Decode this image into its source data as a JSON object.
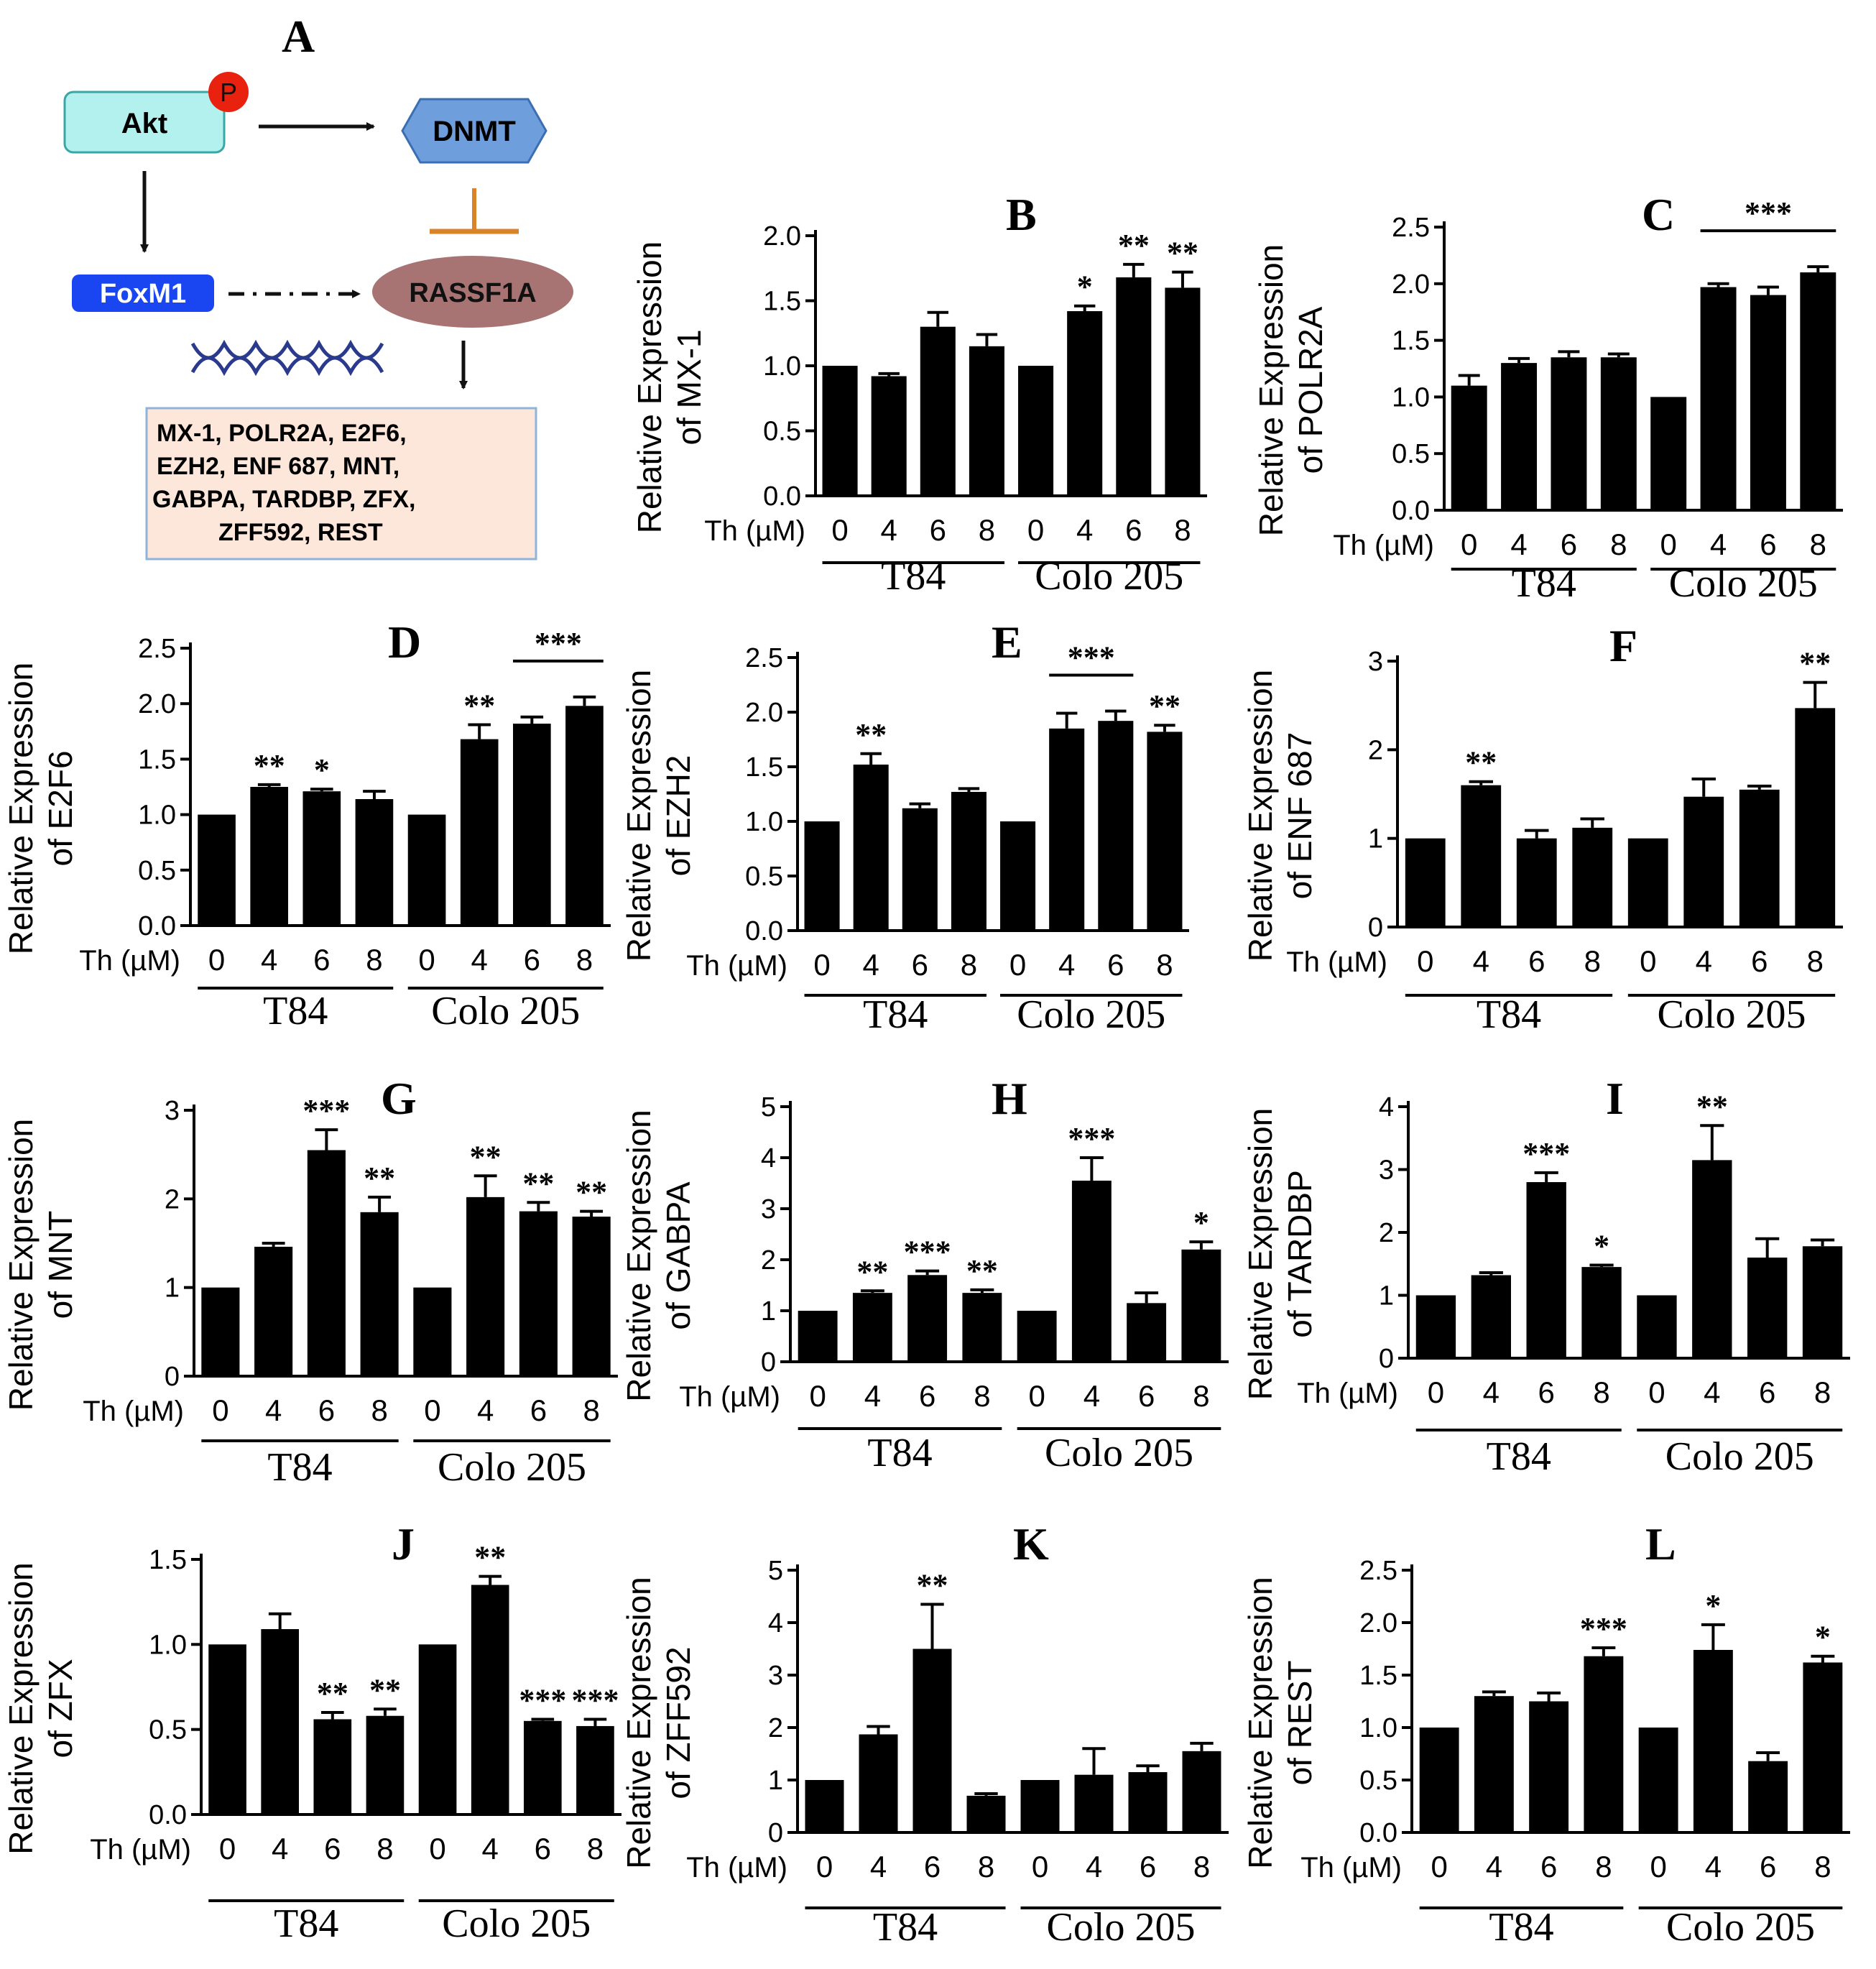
{
  "panel_a": {
    "letter": "A",
    "akt": "Akt",
    "phospho": "P",
    "dnmt": "DNMT",
    "foxm1": "FoxM1",
    "rassf1a": "RASSF1A",
    "gene_lines": [
      "MX-1, POLR2A, E2F6,",
      "EZH2, ENF 687, MNT,",
      "GABPA, TARDBP, ZFX,",
      "ZFF592, REST"
    ],
    "colors": {
      "akt_fill": "#b3f1ef",
      "dnmt_fill": "#6e9edc",
      "foxm1_fill": "#1946f0",
      "rassf1a_fill": "#a87473",
      "phospho_fill": "#e8220f",
      "inhibit": "#d9832a",
      "gene_box_fill": "#fde7da",
      "gene_box_border": "#8fb3d9",
      "dna": "#2a3a8c"
    }
  },
  "chart_data": [
    {
      "type": "bar",
      "panel": "B",
      "ylabel_line1": "Relative Expression",
      "ylabel_line2": "of MX-1",
      "xprefix": "Th (µM)",
      "categories": [
        "0",
        "4",
        "6",
        "8",
        "0",
        "4",
        "6",
        "8"
      ],
      "groups": [
        "T84",
        "Colo 205"
      ],
      "yticks": [
        "0.0",
        "0.5",
        "1.0",
        "1.5",
        "2.0"
      ],
      "ylim": [
        0,
        2.0
      ],
      "values": [
        1.0,
        0.92,
        1.3,
        1.15,
        1.0,
        1.42,
        1.68,
        1.6
      ],
      "errors": [
        0,
        0.02,
        0.11,
        0.09,
        0,
        0.04,
        0.1,
        0.12
      ],
      "stars": [
        "",
        "",
        "",
        "",
        "",
        "*",
        "**",
        "**"
      ],
      "bracket": null
    },
    {
      "type": "bar",
      "panel": "C",
      "ylabel_line1": "Relative Expression",
      "ylabel_line2": "of POLR2A",
      "xprefix": "Th (µM)",
      "categories": [
        "0",
        "4",
        "6",
        "8",
        "0",
        "4",
        "6",
        "8"
      ],
      "groups": [
        "T84",
        "Colo 205"
      ],
      "yticks": [
        "0.0",
        "0.5",
        "1.0",
        "1.5",
        "2.0",
        "2.5"
      ],
      "ylim": [
        0,
        2.5
      ],
      "values": [
        1.1,
        1.3,
        1.35,
        1.35,
        1.0,
        1.97,
        1.9,
        2.1
      ],
      "errors": [
        0.09,
        0.04,
        0.05,
        0.03,
        0,
        0.03,
        0.07,
        0.05
      ],
      "stars": [
        "",
        "",
        "",
        "",
        "",
        "",
        "",
        ""
      ],
      "bracket": {
        "from": 5,
        "to": 7,
        "label": "***"
      }
    },
    {
      "type": "bar",
      "panel": "D",
      "ylabel_line1": "Relative Expression",
      "ylabel_line2": "of E2F6",
      "xprefix": "Th (µM)",
      "categories": [
        "0",
        "4",
        "6",
        "8",
        "0",
        "4",
        "6",
        "8"
      ],
      "groups": [
        "T84",
        "Colo 205"
      ],
      "yticks": [
        "0.0",
        "0.5",
        "1.0",
        "1.5",
        "2.0",
        "2.5"
      ],
      "ylim": [
        0,
        2.5
      ],
      "values": [
        1.0,
        1.25,
        1.21,
        1.14,
        1.0,
        1.68,
        1.82,
        1.98
      ],
      "errors": [
        0,
        0.02,
        0.02,
        0.07,
        0,
        0.13,
        0.06,
        0.08
      ],
      "stars": [
        "",
        "**",
        "*",
        "",
        "",
        "**",
        "",
        ""
      ],
      "bracket": {
        "from": 6,
        "to": 7,
        "label": "***"
      }
    },
    {
      "type": "bar",
      "panel": "E",
      "ylabel_line1": "Relative Expression",
      "ylabel_line2": "of EZH2",
      "xprefix": "Th (µM)",
      "categories": [
        "0",
        "4",
        "6",
        "8",
        "0",
        "4",
        "6",
        "8"
      ],
      "groups": [
        "T84",
        "Colo 205"
      ],
      "yticks": [
        "0.0",
        "0.5",
        "1.0",
        "1.5",
        "2.0",
        "2.5"
      ],
      "ylim": [
        0,
        2.5
      ],
      "values": [
        1.0,
        1.52,
        1.12,
        1.27,
        1.0,
        1.85,
        1.92,
        1.82
      ],
      "errors": [
        0,
        0.1,
        0.04,
        0.03,
        0,
        0.14,
        0.09,
        0.06
      ],
      "stars": [
        "",
        "**",
        "",
        "",
        "",
        "",
        "",
        "**"
      ],
      "bracket": {
        "from": 5,
        "to": 6,
        "label": "***"
      }
    },
    {
      "type": "bar",
      "panel": "F",
      "ylabel_line1": "Relative Expression",
      "ylabel_line2": "of ENF 687",
      "xprefix": "Th (µM)",
      "categories": [
        "0",
        "4",
        "6",
        "8",
        "0",
        "4",
        "6",
        "8"
      ],
      "groups": [
        "T84",
        "Colo 205"
      ],
      "yticks": [
        "0",
        "1",
        "2",
        "3"
      ],
      "ylim": [
        0,
        3
      ],
      "values": [
        1.0,
        1.6,
        1.0,
        1.12,
        1.0,
        1.47,
        1.55,
        2.47
      ],
      "errors": [
        0,
        0.04,
        0.09,
        0.1,
        0,
        0.2,
        0.04,
        0.29
      ],
      "stars": [
        "",
        "**",
        "",
        "",
        "",
        "",
        "",
        "**"
      ],
      "bracket": null
    },
    {
      "type": "bar",
      "panel": "G",
      "ylabel_line1": "Relative Expression",
      "ylabel_line2": "of  MNT",
      "xprefix": "Th (µM)",
      "categories": [
        "0",
        "4",
        "6",
        "8",
        "0",
        "4",
        "6",
        "8"
      ],
      "groups": [
        "T84",
        "Colo 205"
      ],
      "yticks": [
        "0",
        "1",
        "2",
        "3"
      ],
      "ylim": [
        0,
        3
      ],
      "values": [
        1.0,
        1.46,
        2.55,
        1.85,
        1.0,
        2.02,
        1.86,
        1.8
      ],
      "errors": [
        0,
        0.04,
        0.23,
        0.17,
        0,
        0.24,
        0.1,
        0.06
      ],
      "stars": [
        "",
        "",
        "***",
        "**",
        "",
        "**",
        "**",
        "**"
      ],
      "bracket": null
    },
    {
      "type": "bar",
      "panel": "H",
      "ylabel_line1": "Relative Expression",
      "ylabel_line2": "of  GABPA",
      "xprefix": "Th (µM)",
      "categories": [
        "0",
        "4",
        "6",
        "8",
        "0",
        "4",
        "6",
        "8"
      ],
      "groups": [
        "T84",
        "Colo 205"
      ],
      "yticks": [
        "0",
        "1",
        "2",
        "3",
        "4",
        "5"
      ],
      "ylim": [
        0,
        5
      ],
      "values": [
        1.0,
        1.35,
        1.7,
        1.35,
        1.0,
        3.55,
        1.15,
        2.2
      ],
      "errors": [
        0,
        0.04,
        0.08,
        0.06,
        0,
        0.45,
        0.2,
        0.15
      ],
      "stars": [
        "",
        "**",
        "***",
        "**",
        "",
        "***",
        "",
        "*"
      ],
      "bracket": null
    },
    {
      "type": "bar",
      "panel": "I",
      "ylabel_line1": "Relative Expression",
      "ylabel_line2": "of  TARDBP",
      "xprefix": "Th (µM)",
      "categories": [
        "0",
        "4",
        "6",
        "8",
        "0",
        "4",
        "6",
        "8"
      ],
      "groups": [
        "T84",
        "Colo 205"
      ],
      "yticks": [
        "0",
        "1",
        "2",
        "3",
        "4"
      ],
      "ylim": [
        0,
        4
      ],
      "values": [
        1.0,
        1.32,
        2.8,
        1.45,
        1.0,
        3.15,
        1.6,
        1.78
      ],
      "errors": [
        0,
        0.04,
        0.15,
        0.03,
        0,
        0.55,
        0.3,
        0.1
      ],
      "stars": [
        "",
        "",
        "***",
        "*",
        "",
        "**",
        "",
        ""
      ],
      "bracket": null
    },
    {
      "type": "bar",
      "panel": "J",
      "ylabel_line1": "Relative Expression",
      "ylabel_line2": "of  ZFX",
      "xprefix": "Th (µM)",
      "categories": [
        "0",
        "4",
        "6",
        "8",
        "0",
        "4",
        "6",
        "8"
      ],
      "groups": [
        "T84",
        "Colo 205"
      ],
      "yticks": [
        "0.0",
        "0.5",
        "1.0",
        "1.5"
      ],
      "ylim": [
        0,
        1.5
      ],
      "values": [
        1.0,
        1.09,
        0.56,
        0.58,
        1.0,
        1.35,
        0.55,
        0.52
      ],
      "errors": [
        0,
        0.09,
        0.04,
        0.04,
        0,
        0.05,
        0.01,
        0.04
      ],
      "stars": [
        "",
        "",
        "**",
        "**",
        "",
        "**",
        "***",
        "***"
      ],
      "bracket": null
    },
    {
      "type": "bar",
      "panel": "K",
      "ylabel_line1": "Relative Expression",
      "ylabel_line2": "of  ZFF592",
      "xprefix": "Th (µM)",
      "categories": [
        "0",
        "4",
        "6",
        "8",
        "0",
        "4",
        "6",
        "8"
      ],
      "groups": [
        "T84",
        "Colo 205"
      ],
      "yticks": [
        "0",
        "1",
        "2",
        "3",
        "4",
        "5"
      ],
      "ylim": [
        0,
        5
      ],
      "values": [
        1.0,
        1.87,
        3.5,
        0.7,
        1.0,
        1.1,
        1.15,
        1.55
      ],
      "errors": [
        0,
        0.15,
        0.85,
        0.04,
        0,
        0.5,
        0.12,
        0.15
      ],
      "stars": [
        "",
        "",
        "**",
        "",
        "",
        "",
        "",
        ""
      ],
      "bracket": null
    },
    {
      "type": "bar",
      "panel": "L",
      "ylabel_line1": "Relative Expression",
      "ylabel_line2": "of  REST",
      "xprefix": "Th (µM)",
      "categories": [
        "0",
        "4",
        "6",
        "8",
        "0",
        "4",
        "6",
        "8"
      ],
      "groups": [
        "T84",
        "Colo 205"
      ],
      "yticks": [
        "0.0",
        "0.5",
        "1.0",
        "1.5",
        "2.0",
        "2.5"
      ],
      "ylim": [
        0,
        2.5
      ],
      "values": [
        1.0,
        1.3,
        1.25,
        1.68,
        1.0,
        1.74,
        0.68,
        1.62
      ],
      "errors": [
        0,
        0.04,
        0.08,
        0.08,
        0,
        0.24,
        0.08,
        0.06
      ],
      "stars": [
        "",
        "",
        "",
        "***",
        "",
        "*",
        "",
        "*"
      ],
      "bracket": null
    }
  ]
}
